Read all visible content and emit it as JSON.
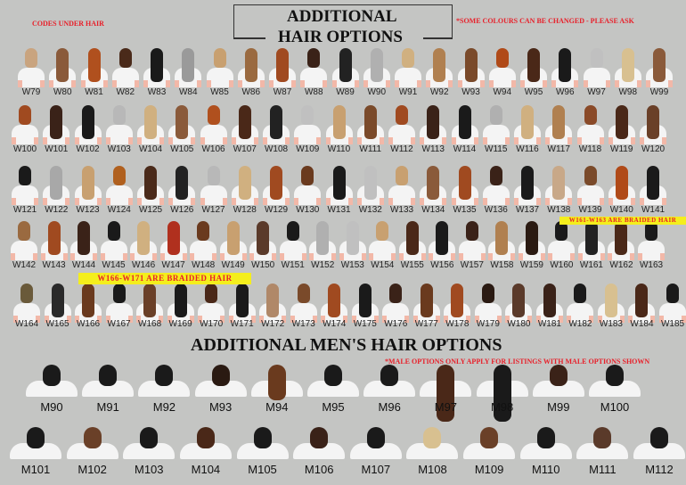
{
  "header": {
    "note_left": "CODES UNDER HAIR",
    "title_line1": "ADDITIONAL",
    "title_line2": "HAIR OPTIONS",
    "note_right": "*SOME COLOURS CAN BE CHANGED - PLEASE ASK"
  },
  "banners": {
    "braided_1": "W161-W163 ARE BRAIDED HAIR",
    "braided_2": "W166-W171 ARE BRAIDED HAIR"
  },
  "mens": {
    "title": "ADDITIONAL MEN'S HAIR OPTIONS",
    "note": "*MALE OPTIONS  ONLY APPLY FOR LISTINGS WITH MALE OPTIONS SHOWN"
  },
  "women_rows": [
    {
      "codes": [
        "W79",
        "W80",
        "W81",
        "W82",
        "W83",
        "W84",
        "W85",
        "W86",
        "W87",
        "W88",
        "W89",
        "W90",
        "W91",
        "W92",
        "W93",
        "W94",
        "W95",
        "W96",
        "W97",
        "W98",
        "W99"
      ],
      "colors": [
        "#c9a47f",
        "#8a5a3a",
        "#b0501e",
        "#4a2a1a",
        "#1a1a1a",
        "#9a9a9a",
        "#c8a070",
        "#9a6a40",
        "#a04a20",
        "#3a2218",
        "#222222",
        "#b0b0b0",
        "#d0b080",
        "#b08050",
        "#7a4a2a",
        "#b04a18",
        "#4a2818",
        "#1a1a1a",
        "#c0c0c0",
        "#d8c090",
        "#8a5a3a"
      ]
    },
    {
      "codes": [
        "W100",
        "W101",
        "W102",
        "W103",
        "W104",
        "W105",
        "W106",
        "W107",
        "W108",
        "W109",
        "W110",
        "W111",
        "W112",
        "W113",
        "W114",
        "W115",
        "W116",
        "W117",
        "W118",
        "W119",
        "W120"
      ],
      "colors": [
        "#a04a20",
        "#3a2218",
        "#1a1a1a",
        "#b8b8b8",
        "#d0b080",
        "#8a5a3a",
        "#b0501e",
        "#4a2818",
        "#222222",
        "#c0c0c0",
        "#c8a070",
        "#7a4a2a",
        "#a04a20",
        "#3a2218",
        "#1a1a1a",
        "#b0b0b0",
        "#d0b080",
        "#b08050",
        "#8a4a28",
        "#4a2818",
        "#6a4028"
      ]
    },
    {
      "codes": [
        "W121",
        "W122",
        "W123",
        "W124",
        "W125",
        "W126",
        "W127",
        "W128",
        "W129",
        "W130",
        "W131",
        "W132",
        "W133",
        "W134",
        "W135",
        "W136",
        "W137",
        "W138",
        "W139",
        "W140",
        "W141"
      ],
      "colors": [
        "#1a1a1a",
        "#a8a8a8",
        "#c8a070",
        "#b0601e",
        "#4a2a1a",
        "#222222",
        "#b8b8b8",
        "#d0b080",
        "#a04a20",
        "#6a3a1e",
        "#1a1a1a",
        "#c0c0c0",
        "#c8a070",
        "#8a5a3a",
        "#a04a20",
        "#3a2218",
        "#1a1a1a",
        "#c8a888",
        "#7a4a2a",
        "#b04a18",
        "#1a1a1a"
      ]
    },
    {
      "codes": [
        "W142",
        "W143",
        "W144",
        "W145",
        "W146",
        "W147",
        "W148",
        "W149",
        "W150",
        "W151",
        "W152",
        "W153",
        "W154",
        "W155",
        "W156",
        "W157",
        "W158",
        "W159",
        "W160",
        "W161",
        "W162",
        "W163"
      ],
      "colors": [
        "#9a6a40",
        "#a04a20",
        "#3a2218",
        "#1a1a1a",
        "#d0b080",
        "#b0301e",
        "#6a3a1e",
        "#c8a070",
        "#5a3a2a",
        "#1a1a1a",
        "#b0b0b0",
        "#c0c0c0",
        "#c8a070",
        "#4a2818",
        "#1a1a1a",
        "#3a2218",
        "#b08050",
        "#2a1a12",
        "#1a1a1a",
        "#222222",
        "#4a2818",
        "#1a1a1a"
      ]
    },
    {
      "codes": [
        "W164",
        "W165",
        "W166",
        "W167",
        "W168",
        "W169",
        "W170",
        "W171",
        "W172",
        "W173",
        "W174",
        "W175",
        "W176",
        "W177",
        "W178",
        "W179",
        "W180",
        "W181",
        "W182",
        "W183",
        "W184",
        "W185"
      ],
      "colors": [
        "#6a5a3a",
        "#2a2a2a",
        "#6a3a1e",
        "#1a1a1a",
        "#6a4028",
        "#1a1a1a",
        "#4a2818",
        "#1a1a1a",
        "#b08868",
        "#7a4a2a",
        "#a04a20",
        "#1a1a1a",
        "#3a2218",
        "#6a3a1e",
        "#a04a20",
        "#2a1a12",
        "#5a3a2a",
        "#3a2218",
        "#1a1a1a",
        "#d8c090",
        "#4a2818",
        "#1a1a1a"
      ]
    }
  ],
  "men_rows": [
    {
      "codes": [
        "M90",
        "M91",
        "M92",
        "M93",
        "M94",
        "M95",
        "M96",
        "M97",
        "M98",
        "M99",
        "M100"
      ],
      "colors": [
        "#1a1a1a",
        "#1a1a1a",
        "#1a1a1a",
        "#2a1a12",
        "#6a3a1e",
        "#1a1a1a",
        "#1a1a1a",
        "#4a2818",
        "#1a1a1a",
        "#3a2218",
        "#1a1a1a"
      ]
    },
    {
      "codes": [
        "M101",
        "M102",
        "M103",
        "M104",
        "M105",
        "M106",
        "M107",
        "M108",
        "M109",
        "M110",
        "M111",
        "M112"
      ],
      "colors": [
        "#1a1a1a",
        "#6a4028",
        "#1a1a1a",
        "#4a2818",
        "#1a1a1a",
        "#3a2218",
        "#1a1a1a",
        "#d8c090",
        "#6a4028",
        "#1a1a1a",
        "#5a3a2a",
        "#1a1a1a"
      ]
    }
  ]
}
